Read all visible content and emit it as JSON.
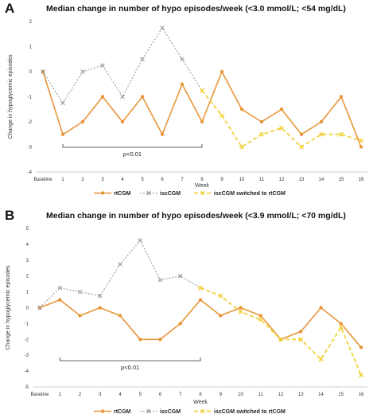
{
  "colors": {
    "rtcgm": "#E8963A",
    "iscgm": "#999999",
    "switched": "#F2D23C"
  },
  "chart_data": [
    {
      "panel": "A",
      "type": "line",
      "title": "Median change in number of hypo episodes/week (<3.0 mmol/L; <54 mg/dL)",
      "xlabel": "Week",
      "ylabel": "Change in hypoglycemic episodes",
      "categories": [
        "Baseline",
        "1",
        "2",
        "3",
        "4",
        "5",
        "6",
        "7",
        "8",
        "9",
        "10",
        "11",
        "12",
        "13",
        "14",
        "15",
        "16"
      ],
      "ylim": [
        -4,
        2
      ],
      "yticks": [
        "-4",
        "-3",
        "-2",
        "-1",
        "0",
        "1",
        "2"
      ],
      "series": [
        {
          "name": "rtCGM",
          "values": [
            0,
            -2.5,
            -2,
            -1,
            -2,
            -1,
            -2.5,
            -0.5,
            -2,
            0,
            -1.5,
            -2,
            -1.5,
            -2.5,
            -2,
            -1,
            -3
          ]
        },
        {
          "name": "iscCGM",
          "values": [
            0,
            -1.25,
            0,
            0.25,
            -1,
            0.5,
            1.75,
            0.5,
            -0.75,
            null,
            null,
            null,
            null,
            null,
            null,
            null,
            null
          ]
        },
        {
          "name": "iscCGM switched to rtCGM",
          "values": [
            null,
            null,
            null,
            null,
            null,
            null,
            null,
            null,
            -0.75,
            -1.75,
            -3,
            -2.5,
            -2.25,
            -3,
            -2.5,
            -2.5,
            -2.75
          ]
        }
      ],
      "annotation": {
        "text": "p<0.01",
        "from": "1",
        "to": "8"
      }
    },
    {
      "panel": "B",
      "type": "line",
      "title": "Median change in number of hypo episodes/week (<3.9 mmol/L; <70 mg/dL)",
      "xlabel": "Week",
      "ylabel": "Change in hypoglycemic episodes",
      "categories": [
        "Baseline",
        "1",
        "2",
        "3",
        "4",
        "5",
        "6",
        "7",
        "8",
        "9",
        "10",
        "11",
        "12",
        "13",
        "14",
        "15",
        "16"
      ],
      "ylim": [
        -5,
        5
      ],
      "yticks": [
        "-5",
        "-4",
        "-3",
        "-2",
        "-1",
        "0",
        "1",
        "2",
        "3",
        "4",
        "5"
      ],
      "series": [
        {
          "name": "rtCGM",
          "values": [
            0,
            0.5,
            -0.5,
            0,
            -0.5,
            -2,
            -2,
            -1,
            0.5,
            -0.5,
            0,
            -0.5,
            -2,
            -1.5,
            0,
            -1,
            -2.5
          ]
        },
        {
          "name": "iscCGM",
          "values": [
            0,
            1.25,
            1,
            0.75,
            2.75,
            4.25,
            1.75,
            2,
            1.25,
            null,
            null,
            null,
            null,
            null,
            null,
            null,
            null
          ]
        },
        {
          "name": "iscCGM switched to rtCGM",
          "values": [
            null,
            null,
            null,
            null,
            null,
            null,
            null,
            null,
            1.25,
            0.75,
            -0.25,
            -0.75,
            -2,
            -2,
            -3.25,
            -1.25,
            -4.25
          ]
        }
      ],
      "annotation": {
        "text": "p<0.01",
        "from": "1",
        "to": "8"
      }
    }
  ]
}
